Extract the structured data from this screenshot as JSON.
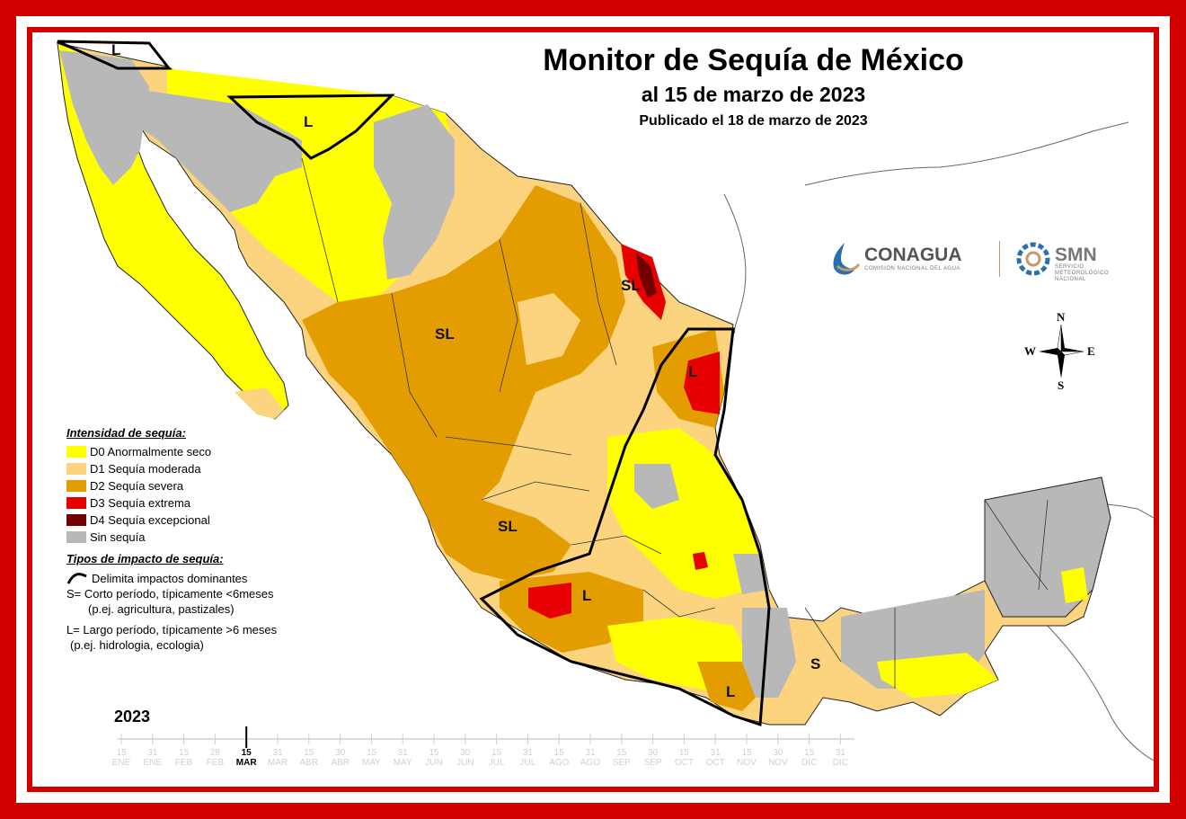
{
  "title": "Monitor de Sequía de México",
  "subtitle": "al 15 de marzo de 2023",
  "published": "Publicado el 18 de marzo de 2023",
  "logos": {
    "conagua": "CONAGUA",
    "conagua_sub": "COMISIÓN NACIONAL DEL AGUA",
    "smn": "SMN",
    "smn_sub_1": "SERVICIO",
    "smn_sub_2": "METEOROLÓGICO",
    "smn_sub_3": "NACIONAL"
  },
  "compass": {
    "n": "N",
    "s": "S",
    "e": "E",
    "w": "W"
  },
  "legend": {
    "heading": "Intensidad de sequía:",
    "items": [
      {
        "label": "D0 Anormalmente seco",
        "color": "#ffff00"
      },
      {
        "label": "D1 Sequía moderada",
        "color": "#fcd37f"
      },
      {
        "label": "D2 Sequía severa",
        "color": "#e39d00"
      },
      {
        "label": "D3 Sequía extrema",
        "color": "#e60000"
      },
      {
        "label": "D4 Sequía excepcional",
        "color": "#730000"
      },
      {
        "label": "Sin sequía",
        "color": "#b8b8b8"
      }
    ]
  },
  "impact": {
    "heading": "Tipos de impacto de sequía:",
    "delimits": "Delimita impactos dominantes",
    "short_line": "S= Corto período, típicamente <6meses",
    "short_example": "(p.ej. agricultura, pastizales)",
    "long_line": "L= Largo período, típicamente >6 meses",
    "long_example": "(p.ej. hidrologia, ecologia)"
  },
  "zones": [
    "L",
    "L",
    "SL",
    "SL",
    "L",
    "SL",
    "L",
    "L",
    "S"
  ],
  "timeline": {
    "year": "2023",
    "ticks": [
      {
        "day": "15",
        "month": "ENE"
      },
      {
        "day": "31",
        "month": "ENE"
      },
      {
        "day": "15",
        "month": "FEB"
      },
      {
        "day": "28",
        "month": "FEB"
      },
      {
        "day": "15",
        "month": "MAR",
        "current": true
      },
      {
        "day": "31",
        "month": "MAR"
      },
      {
        "day": "15",
        "month": "ABR"
      },
      {
        "day": "30",
        "month": "ABR"
      },
      {
        "day": "15",
        "month": "MAY"
      },
      {
        "day": "31",
        "month": "MAY"
      },
      {
        "day": "15",
        "month": "JUN"
      },
      {
        "day": "30",
        "month": "JUN"
      },
      {
        "day": "15",
        "month": "JUL"
      },
      {
        "day": "31",
        "month": "JUL"
      },
      {
        "day": "15",
        "month": "AGO"
      },
      {
        "day": "31",
        "month": "AGO"
      },
      {
        "day": "15",
        "month": "SEP"
      },
      {
        "day": "30",
        "month": "SEP"
      },
      {
        "day": "15",
        "month": "OCT"
      },
      {
        "day": "31",
        "month": "OCT"
      },
      {
        "day": "15",
        "month": "NOV"
      },
      {
        "day": "30",
        "month": "NOV"
      },
      {
        "day": "15",
        "month": "DIC"
      },
      {
        "day": "31",
        "month": "DIC"
      }
    ]
  }
}
